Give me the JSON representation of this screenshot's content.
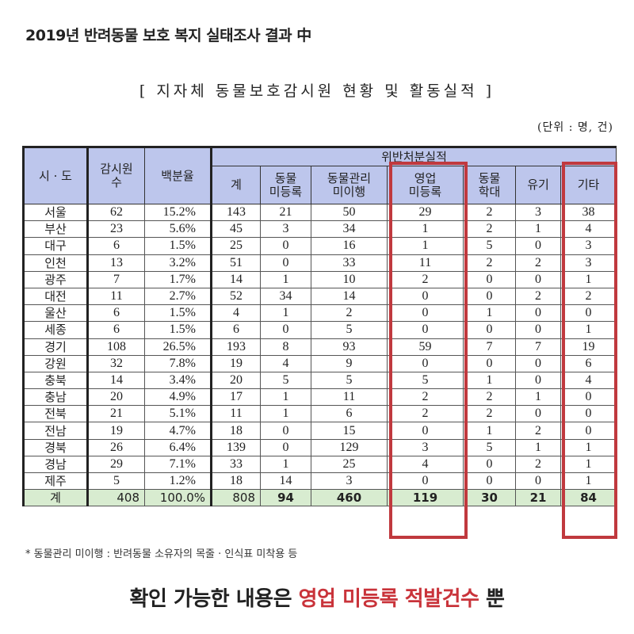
{
  "document_title": "2019년 반려동물 보호 복지 실태조사 결과 中",
  "section_title": "[ 지자체 동물보호감시원 현황 및 활동실적 ]",
  "unit_note": "(단위 : 명, 건)",
  "table": {
    "headers": {
      "region": "시 · 도",
      "inspectors_line1": "감시원",
      "inspectors_line2": "수",
      "percentage": "백분율",
      "group": "위반처분실적",
      "total": "계",
      "unregistered_line1": "동물",
      "unregistered_line2": "미등록",
      "mismanagement_line1": "동물관리",
      "mismanagement_line2": "미이행",
      "business_line1": "영업",
      "business_line2": "미등록",
      "abuse_line1": "동물",
      "abuse_line2": "학대",
      "abandon": "유기",
      "other": "기타"
    },
    "rows": [
      [
        "서울",
        "62",
        "15.2%",
        "143",
        "21",
        "50",
        "29",
        "2",
        "3",
        "38"
      ],
      [
        "부산",
        "23",
        "5.6%",
        "45",
        "3",
        "34",
        "1",
        "2",
        "1",
        "4"
      ],
      [
        "대구",
        "6",
        "1.5%",
        "25",
        "0",
        "16",
        "1",
        "5",
        "0",
        "3"
      ],
      [
        "인천",
        "13",
        "3.2%",
        "51",
        "0",
        "33",
        "11",
        "2",
        "2",
        "3"
      ],
      [
        "광주",
        "7",
        "1.7%",
        "14",
        "1",
        "10",
        "2",
        "0",
        "0",
        "1"
      ],
      [
        "대전",
        "11",
        "2.7%",
        "52",
        "34",
        "14",
        "0",
        "0",
        "2",
        "2"
      ],
      [
        "울산",
        "6",
        "1.5%",
        "4",
        "1",
        "2",
        "0",
        "1",
        "0",
        "0"
      ],
      [
        "세종",
        "6",
        "1.5%",
        "6",
        "0",
        "5",
        "0",
        "0",
        "0",
        "1"
      ],
      [
        "경기",
        "108",
        "26.5%",
        "193",
        "8",
        "93",
        "59",
        "7",
        "7",
        "19"
      ],
      [
        "강원",
        "32",
        "7.8%",
        "19",
        "4",
        "9",
        "0",
        "0",
        "0",
        "6"
      ],
      [
        "충북",
        "14",
        "3.4%",
        "20",
        "5",
        "5",
        "5",
        "1",
        "0",
        "4"
      ],
      [
        "충남",
        "20",
        "4.9%",
        "17",
        "1",
        "11",
        "2",
        "2",
        "1",
        "0"
      ],
      [
        "전북",
        "21",
        "5.1%",
        "11",
        "1",
        "6",
        "2",
        "2",
        "0",
        "0"
      ],
      [
        "전남",
        "19",
        "4.7%",
        "18",
        "0",
        "15",
        "0",
        "1",
        "2",
        "0"
      ],
      [
        "경북",
        "26",
        "6.4%",
        "139",
        "0",
        "129",
        "3",
        "5",
        "1",
        "1"
      ],
      [
        "경남",
        "29",
        "7.1%",
        "33",
        "1",
        "25",
        "4",
        "0",
        "2",
        "1"
      ],
      [
        "제주",
        "5",
        "1.2%",
        "18",
        "14",
        "3",
        "0",
        "0",
        "0",
        "1"
      ]
    ],
    "total_row": [
      "계",
      "408",
      "100.0%",
      "808",
      "94",
      "460",
      "119",
      "30",
      "21",
      "84"
    ]
  },
  "footnote": "* 동물관리 미이행 : 반려동물 소유자의 목줄 · 인식표 미착용 등",
  "conclusion": {
    "prefix": "확인 가능한 내용은 ",
    "emphasis": "영업 미등록 적발건수",
    "suffix": " 뿐"
  },
  "colors": {
    "header_bg": "#bdc6ec",
    "total_bg": "#d8ecd0",
    "highlight": "#c0393e",
    "emphasis_text": "#c9333a"
  }
}
